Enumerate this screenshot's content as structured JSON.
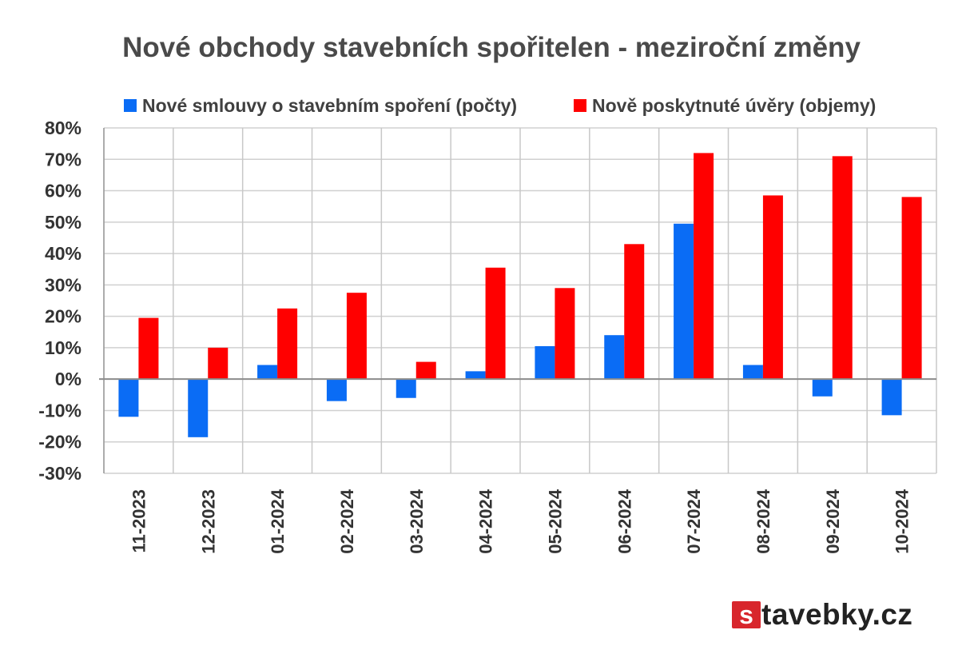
{
  "chart_data": {
    "type": "bar",
    "title": "Nové obchody stavebních spořitelen - meziroční změny",
    "categories": [
      "11-2023",
      "12-2023",
      "01-2024",
      "02-2024",
      "03-2024",
      "04-2024",
      "05-2024",
      "06-2024",
      "07-2024",
      "08-2024",
      "09-2024",
      "10-2024"
    ],
    "series": [
      {
        "name": "Nové smlouvy o stavebním spoření (počty)",
        "color": "#0a6cf5",
        "values": [
          -12,
          -18.5,
          4.5,
          -7,
          -6,
          2.5,
          10.5,
          14,
          49.5,
          4.5,
          -5.5,
          -11.5
        ]
      },
      {
        "name": "Nově poskytnuté úvěry (objemy)",
        "color": "#ff0000",
        "values": [
          19.5,
          10,
          22.5,
          27.5,
          5.5,
          35.5,
          29,
          43,
          72,
          58.5,
          71,
          58
        ]
      }
    ],
    "ylim": [
      -30,
      80
    ],
    "yticks": [
      "-30%",
      "-20%",
      "-10%",
      "0%",
      "10%",
      "20%",
      "30%",
      "40%",
      "50%",
      "60%",
      "70%",
      "80%"
    ],
    "grid": true,
    "legend_position": "top"
  },
  "brand": {
    "badge": "s",
    "rest": "tavebky.cz"
  }
}
